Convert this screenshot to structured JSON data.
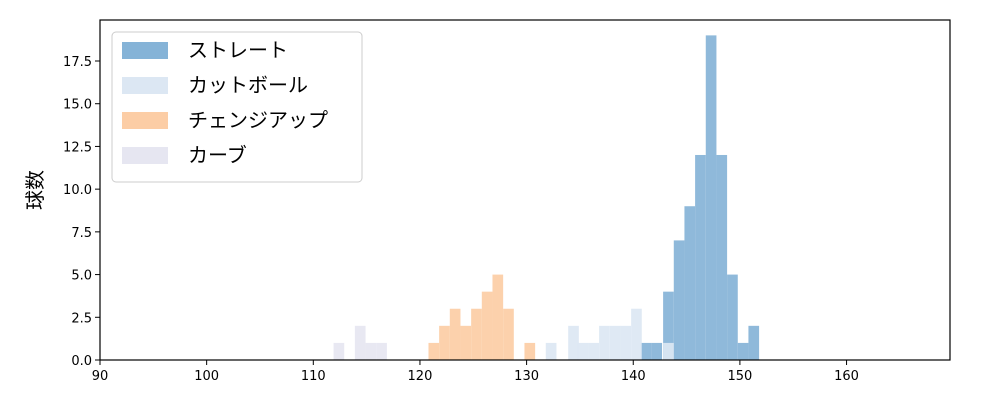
{
  "chart_data": {
    "type": "histogram",
    "title": "",
    "xlabel": "",
    "ylabel": "球数",
    "xlim": [
      90,
      169.7
    ],
    "ylim": [
      0,
      19.9
    ],
    "xticks": [
      "90",
      "100",
      "110",
      "120",
      "130",
      "140",
      "150",
      "160"
    ],
    "yticks": [
      "0.0",
      "2.5",
      "5.0",
      "7.5",
      "10.0",
      "12.5",
      "15.0",
      "17.5"
    ],
    "grid": false,
    "legend_position": "top-left",
    "bin_width": 1.0,
    "series": [
      {
        "name": "ストレート",
        "color": "#85b3d7",
        "bins": [
          [
            140.7,
            1
          ],
          [
            141.7,
            1
          ],
          [
            142.8,
            4
          ],
          [
            143.8,
            7
          ],
          [
            144.8,
            9
          ],
          [
            145.8,
            12
          ],
          [
            146.8,
            19
          ],
          [
            147.8,
            12
          ],
          [
            148.8,
            5
          ],
          [
            149.8,
            1
          ],
          [
            150.8,
            2
          ]
        ]
      },
      {
        "name": "カットボール",
        "color": "#dce7f3",
        "bins": [
          [
            131.8,
            1
          ],
          [
            133.9,
            2
          ],
          [
            134.8,
            1
          ],
          [
            135.8,
            1
          ],
          [
            136.8,
            2
          ],
          [
            137.8,
            2
          ],
          [
            138.8,
            2
          ],
          [
            139.8,
            3
          ],
          [
            142.8,
            1
          ]
        ]
      },
      {
        "name": "チェンジアップ",
        "color": "#fccda5",
        "bins": [
          [
            120.8,
            1
          ],
          [
            121.8,
            2
          ],
          [
            122.8,
            3
          ],
          [
            123.8,
            2
          ],
          [
            124.8,
            3
          ],
          [
            125.8,
            4
          ],
          [
            126.8,
            5
          ],
          [
            127.8,
            3
          ],
          [
            129.8,
            1
          ]
        ]
      },
      {
        "name": "カーブ",
        "color": "#e6e6f1",
        "bins": [
          [
            111.9,
            1
          ],
          [
            113.9,
            2
          ],
          [
            114.9,
            1
          ],
          [
            115.9,
            1
          ]
        ]
      }
    ]
  }
}
